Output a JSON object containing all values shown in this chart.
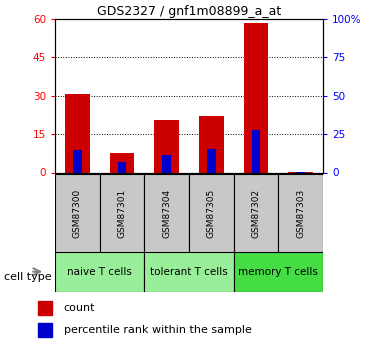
{
  "title": "GDS2327 / gnf1m08899_a_at",
  "samples": [
    "GSM87300",
    "GSM87301",
    "GSM87304",
    "GSM87305",
    "GSM87302",
    "GSM87303"
  ],
  "count_values": [
    30.5,
    7.5,
    20.5,
    22.0,
    58.5,
    0.3
  ],
  "percentile_values": [
    14.5,
    7.0,
    11.5,
    15.5,
    27.5,
    0.2
  ],
  "groups": [
    {
      "label": "naive T cells",
      "start": 0,
      "end": 1,
      "color": "#99ee99"
    },
    {
      "label": "tolerant T cells",
      "start": 2,
      "end": 3,
      "color": "#99ee99"
    },
    {
      "label": "memory T cells",
      "start": 4,
      "end": 5,
      "color": "#44dd44"
    }
  ],
  "ylim_left": [
    0,
    60
  ],
  "ylim_right": [
    0,
    100
  ],
  "yticks_left": [
    0,
    15,
    30,
    45,
    60
  ],
  "yticks_right": [
    0,
    25,
    50,
    75,
    100
  ],
  "yticklabels_right": [
    "0",
    "25",
    "50",
    "75",
    "100%"
  ],
  "bar_color": "#cc0000",
  "percentile_color": "#0000cc",
  "sample_box_color": "#c8c8c8",
  "legend_count": "count",
  "legend_pct": "percentile rank within the sample",
  "cell_type_label": "cell type"
}
